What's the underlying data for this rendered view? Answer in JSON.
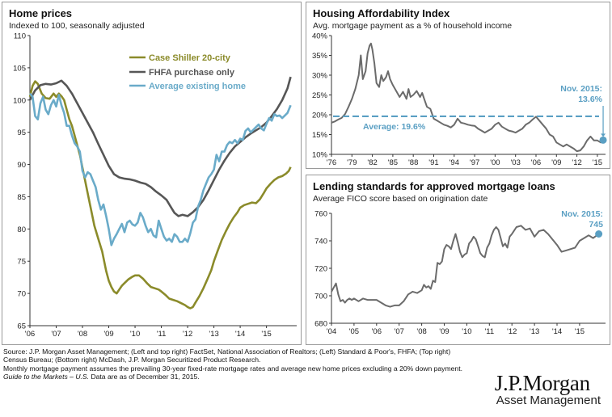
{
  "source_lines": [
    "Source: J.P. Morgan Asset Management; (Left and top right) FactSet, National Association of Realtors; (Left) Standard & Poor's, FHFA; (Top right)",
    "Census Bureau; (Bottom right) McDash, J.P. Morgan Securitized Product Research.",
    "Monthly mortgage payment assumes the prevailing 30-year fixed-rate mortgage rates and average new home prices excluding a 20% down payment.",
    "Data are as of December 31, 2015."
  ],
  "source_italic": "Guide to the Markets – U.S.",
  "logo": {
    "name": "J.P.Morgan",
    "sub": "Asset Management"
  },
  "chart_data": [
    {
      "type": "line",
      "title": "Home prices",
      "subtitle": "Indexed to 100, seasonally adjusted",
      "ylim": [
        65,
        110
      ],
      "yticks": [
        65,
        70,
        75,
        80,
        85,
        90,
        95,
        100,
        105,
        110
      ],
      "xticks": [
        "'06",
        "'07",
        "'08",
        "'09",
        "'10",
        "'11",
        "'12",
        "'13",
        "'14",
        "'15"
      ],
      "xlim": [
        2006.0,
        2016.15
      ],
      "series": [
        {
          "name": "Case Shiller 20-city",
          "color": "#8b8b2a",
          "x": [
            2006.0,
            2006.1,
            2006.2,
            2006.3,
            2006.45,
            2006.6,
            2006.75,
            2006.9,
            2007.0,
            2007.1,
            2007.2,
            2007.3,
            2007.4,
            2007.5,
            2007.6,
            2007.7,
            2007.8,
            2007.9,
            2008.0,
            2008.15,
            2008.3,
            2008.45,
            2008.6,
            2008.75,
            2008.9,
            2009.0,
            2009.1,
            2009.2,
            2009.3,
            2009.4,
            2009.5,
            2009.6,
            2009.75,
            2009.9,
            2010.0,
            2010.15,
            2010.3,
            2010.45,
            2010.6,
            2010.75,
            2010.9,
            2011.0,
            2011.15,
            2011.3,
            2011.45,
            2011.6,
            2011.75,
            2011.9,
            2012.0,
            2012.1,
            2012.2,
            2012.3,
            2012.45,
            2012.6,
            2012.75,
            2012.9,
            2013.0,
            2013.15,
            2013.3,
            2013.45,
            2013.6,
            2013.75,
            2013.9,
            2014.0,
            2014.15,
            2014.3,
            2014.45,
            2014.6,
            2014.75,
            2014.9,
            2015.0,
            2015.15,
            2015.3,
            2015.45,
            2015.6,
            2015.75,
            2015.85,
            2015.92
          ],
          "values": [
            100.5,
            102.2,
            102.9,
            102.5,
            101.0,
            100.3,
            100.2,
            101.0,
            100.5,
            101.0,
            100.6,
            100.0,
            98.5,
            97.0,
            96.0,
            94.5,
            93.0,
            91.5,
            89.5,
            86.5,
            83.5,
            80.5,
            78.5,
            76.5,
            73.5,
            72.0,
            71.0,
            70.3,
            70.0,
            70.6,
            71.2,
            71.6,
            72.2,
            72.6,
            72.8,
            72.8,
            72.3,
            71.6,
            71.0,
            70.8,
            70.6,
            70.3,
            69.8,
            69.2,
            69.0,
            68.8,
            68.5,
            68.2,
            67.9,
            67.7,
            67.9,
            68.6,
            69.6,
            70.8,
            72.2,
            73.6,
            75.0,
            76.7,
            78.3,
            79.6,
            80.8,
            81.8,
            82.6,
            83.3,
            83.7,
            83.9,
            84.1,
            84.0,
            84.6,
            85.6,
            86.3,
            87.0,
            87.6,
            88.0,
            88.2,
            88.6,
            89.0,
            89.6
          ]
        },
        {
          "name": "FHFA purchase only",
          "color": "#565656",
          "x": [
            2006.0,
            2006.2,
            2006.4,
            2006.6,
            2006.8,
            2007.0,
            2007.2,
            2007.4,
            2007.6,
            2007.8,
            2008.0,
            2008.2,
            2008.4,
            2008.6,
            2008.8,
            2009.0,
            2009.2,
            2009.4,
            2009.6,
            2009.8,
            2010.0,
            2010.2,
            2010.4,
            2010.6,
            2010.8,
            2011.0,
            2011.2,
            2011.35,
            2011.5,
            2011.65,
            2011.8,
            2012.0,
            2012.2,
            2012.4,
            2012.6,
            2012.8,
            2013.0,
            2013.2,
            2013.4,
            2013.6,
            2013.8,
            2014.0,
            2014.2,
            2014.4,
            2014.6,
            2014.8,
            2015.0,
            2015.2,
            2015.4,
            2015.6,
            2015.8,
            2015.92
          ],
          "values": [
            100.0,
            101.5,
            102.3,
            102.5,
            102.4,
            102.6,
            103.0,
            102.2,
            101.0,
            99.5,
            98.0,
            96.5,
            95.0,
            93.2,
            91.5,
            89.8,
            88.5,
            88.0,
            87.8,
            87.7,
            87.5,
            87.2,
            87.0,
            86.5,
            85.8,
            85.2,
            84.5,
            83.5,
            82.5,
            82.0,
            82.2,
            82.0,
            82.6,
            83.4,
            84.5,
            86.0,
            87.6,
            89.2,
            90.6,
            91.8,
            92.8,
            93.5,
            94.2,
            94.8,
            95.3,
            95.8,
            96.5,
            97.5,
            98.6,
            100.0,
            101.8,
            103.6
          ]
        },
        {
          "name": "Average existing home",
          "color": "#6aabc9",
          "x": [
            2006.0,
            2006.1,
            2006.2,
            2006.3,
            2006.4,
            2006.5,
            2006.6,
            2006.7,
            2006.8,
            2006.9,
            2007.0,
            2007.1,
            2007.2,
            2007.3,
            2007.4,
            2007.5,
            2007.6,
            2007.7,
            2007.8,
            2007.9,
            2008.0,
            2008.1,
            2008.2,
            2008.3,
            2008.4,
            2008.5,
            2008.6,
            2008.7,
            2008.8,
            2008.9,
            2009.0,
            2009.1,
            2009.2,
            2009.3,
            2009.4,
            2009.5,
            2009.6,
            2009.7,
            2009.8,
            2009.9,
            2010.0,
            2010.1,
            2010.2,
            2010.3,
            2010.4,
            2010.5,
            2010.6,
            2010.7,
            2010.8,
            2010.9,
            2011.0,
            2011.1,
            2011.2,
            2011.3,
            2011.4,
            2011.5,
            2011.6,
            2011.7,
            2011.8,
            2011.9,
            2012.0,
            2012.1,
            2012.2,
            2012.3,
            2012.4,
            2012.5,
            2012.6,
            2012.7,
            2012.8,
            2012.9,
            2013.0,
            2013.1,
            2013.2,
            2013.3,
            2013.4,
            2013.5,
            2013.6,
            2013.7,
            2013.8,
            2013.9,
            2014.0,
            2014.1,
            2014.2,
            2014.3,
            2014.4,
            2014.5,
            2014.6,
            2014.7,
            2014.8,
            2014.9,
            2015.0,
            2015.1,
            2015.2,
            2015.3,
            2015.4,
            2015.5,
            2015.6,
            2015.7,
            2015.8,
            2015.92
          ],
          "values": [
            101.0,
            100.5,
            97.5,
            97.0,
            99.5,
            100.5,
            98.5,
            97.8,
            99.2,
            100.0,
            99.0,
            100.8,
            99.2,
            98.0,
            96.0,
            96.0,
            94.5,
            93.3,
            92.8,
            92.0,
            89.0,
            88.0,
            88.8,
            88.5,
            87.5,
            86.5,
            84.5,
            83.0,
            83.8,
            82.0,
            80.0,
            77.5,
            78.5,
            79.2,
            80.0,
            80.8,
            79.5,
            81.0,
            81.3,
            80.7,
            80.5,
            81.0,
            82.5,
            81.8,
            80.5,
            79.5,
            80.0,
            79.0,
            78.7,
            81.3,
            80.0,
            78.8,
            78.2,
            78.5,
            78.0,
            79.2,
            78.8,
            78.0,
            78.0,
            78.5,
            78.0,
            79.3,
            81.0,
            81.5,
            83.5,
            84.5,
            86.0,
            87.0,
            88.0,
            88.5,
            89.2,
            91.5,
            90.5,
            92.0,
            92.0,
            93.0,
            93.5,
            93.3,
            93.8,
            93.3,
            94.0,
            93.8,
            95.2,
            95.6,
            95.0,
            95.4,
            95.8,
            96.2,
            95.6,
            95.3,
            96.3,
            97.2,
            96.8,
            97.8,
            97.5,
            97.6,
            97.2,
            97.6,
            98.0,
            99.2
          ]
        }
      ]
    },
    {
      "type": "line",
      "title": "Housing Affordability Index",
      "subtitle": "Avg. mortgage payment as a % of household income",
      "ylim": [
        10,
        40
      ],
      "yticks": [
        "10%",
        "15%",
        "20%",
        "25%",
        "30%",
        "35%",
        "40%"
      ],
      "xticks": [
        "'76",
        "'79",
        "'82",
        "'85",
        "'88",
        "'91",
        "'94",
        "'97",
        "'00",
        "'03",
        "'06",
        "'09",
        "'12",
        "'15"
      ],
      "xlim": [
        1976.0,
        2016.2
      ],
      "average": {
        "value": 19.6,
        "label": "Average: 19.6%"
      },
      "annotation": {
        "label": "Nov. 2015:",
        "value_label": "13.6%",
        "x": 2015.85,
        "y": 13.6
      },
      "series": [
        {
          "color": "#6b6b6b",
          "x": [
            1976.0,
            1976.5,
            1977.0,
            1977.5,
            1978.0,
            1978.5,
            1979.0,
            1979.5,
            1980.0,
            1980.3,
            1980.6,
            1981.0,
            1981.3,
            1981.6,
            1981.8,
            1982.0,
            1982.3,
            1982.6,
            1983.0,
            1983.3,
            1983.6,
            1984.0,
            1984.3,
            1984.6,
            1985.0,
            1985.5,
            1986.0,
            1986.5,
            1987.0,
            1987.3,
            1987.6,
            1988.0,
            1988.5,
            1989.0,
            1989.3,
            1989.6,
            1990.0,
            1990.5,
            1991.0,
            1991.5,
            1992.0,
            1992.5,
            1993.0,
            1993.5,
            1994.0,
            1994.5,
            1995.0,
            1995.5,
            1996.0,
            1996.5,
            1997.0,
            1997.5,
            1998.0,
            1998.5,
            1999.0,
            1999.5,
            2000.0,
            2000.5,
            2001.0,
            2001.5,
            2002.0,
            2002.5,
            2003.0,
            2003.5,
            2004.0,
            2004.5,
            2005.0,
            2005.5,
            2006.0,
            2006.5,
            2007.0,
            2007.5,
            2008.0,
            2008.5,
            2009.0,
            2009.5,
            2010.0,
            2010.5,
            2011.0,
            2011.5,
            2012.0,
            2012.5,
            2013.0,
            2013.5,
            2014.0,
            2014.5,
            2015.0,
            2015.5,
            2015.85
          ],
          "values": [
            18.0,
            18.3,
            18.8,
            19.2,
            20.2,
            22.0,
            24.0,
            26.5,
            30.0,
            35.0,
            29.0,
            31.0,
            35.5,
            37.5,
            38.0,
            36.5,
            33.0,
            28.0,
            27.0,
            30.0,
            28.5,
            29.5,
            31.0,
            29.0,
            27.5,
            26.0,
            24.5,
            25.8,
            24.0,
            26.5,
            24.5,
            25.0,
            26.0,
            24.5,
            25.5,
            24.0,
            22.0,
            21.5,
            19.0,
            18.5,
            18.0,
            17.5,
            17.2,
            16.8,
            17.5,
            19.0,
            18.0,
            17.8,
            17.5,
            17.3,
            17.2,
            16.5,
            16.0,
            15.5,
            16.0,
            16.5,
            17.5,
            18.0,
            17.0,
            16.5,
            16.0,
            15.8,
            15.5,
            16.0,
            16.5,
            17.5,
            18.0,
            18.8,
            19.5,
            18.5,
            17.5,
            16.5,
            15.0,
            14.5,
            13.0,
            12.5,
            12.0,
            12.5,
            12.0,
            11.5,
            10.8,
            11.0,
            12.0,
            13.5,
            14.5,
            13.5,
            13.5,
            13.0,
            13.6
          ]
        }
      ]
    },
    {
      "type": "line",
      "title": "Lending standards for approved mortgage loans",
      "subtitle": "Average FICO score based on origination date",
      "ylim": [
        680,
        760
      ],
      "yticks": [
        680,
        700,
        720,
        740,
        760
      ],
      "xticks": [
        "'04",
        "'05",
        "'06",
        "'07",
        "'08",
        "'09",
        "'10",
        "'11",
        "'12",
        "'13",
        "'14",
        "'15"
      ],
      "xlim": [
        2004.0,
        2016.15
      ],
      "annotation": {
        "label": "Nov. 2015:",
        "value_label": "745",
        "x": 2015.85,
        "y": 745
      },
      "series": [
        {
          "color": "#6b6b6b",
          "x": [
            2004.0,
            2004.1,
            2004.2,
            2004.3,
            2004.4,
            2004.5,
            2004.6,
            2004.7,
            2004.8,
            2004.9,
            2005.0,
            2005.2,
            2005.4,
            2005.6,
            2005.8,
            2006.0,
            2006.2,
            2006.4,
            2006.6,
            2006.8,
            2007.0,
            2007.2,
            2007.4,
            2007.6,
            2007.8,
            2008.0,
            2008.1,
            2008.2,
            2008.3,
            2008.4,
            2008.5,
            2008.6,
            2008.7,
            2008.8,
            2008.9,
            2009.0,
            2009.1,
            2009.2,
            2009.3,
            2009.4,
            2009.5,
            2009.6,
            2009.7,
            2009.8,
            2009.9,
            2010.0,
            2010.1,
            2010.2,
            2010.3,
            2010.4,
            2010.5,
            2010.6,
            2010.7,
            2010.8,
            2010.9,
            2011.0,
            2011.1,
            2011.2,
            2011.3,
            2011.4,
            2011.5,
            2011.6,
            2011.7,
            2011.8,
            2011.9,
            2012.0,
            2012.2,
            2012.4,
            2012.6,
            2012.8,
            2013.0,
            2013.2,
            2013.4,
            2013.6,
            2013.8,
            2014.0,
            2014.2,
            2014.4,
            2014.6,
            2014.8,
            2015.0,
            2015.2,
            2015.4,
            2015.6,
            2015.85
          ],
          "values": [
            703,
            706,
            709,
            701,
            696,
            697,
            695,
            697,
            698,
            697,
            698,
            696,
            698,
            697,
            697,
            697,
            695,
            693,
            692,
            693,
            693,
            696,
            701,
            703,
            702,
            704,
            708,
            706,
            707,
            705,
            711,
            710,
            724,
            723,
            725,
            734,
            737,
            736,
            734,
            740,
            745,
            739,
            732,
            728,
            730,
            731,
            738,
            740,
            743,
            741,
            736,
            731,
            729,
            728,
            735,
            738,
            744,
            748,
            750,
            748,
            742,
            736,
            738,
            735,
            743,
            745,
            750,
            751,
            748,
            749,
            743,
            747,
            748,
            745,
            741,
            737,
            732,
            733,
            734,
            735,
            740,
            742,
            744,
            742,
            745
          ]
        }
      ]
    }
  ]
}
